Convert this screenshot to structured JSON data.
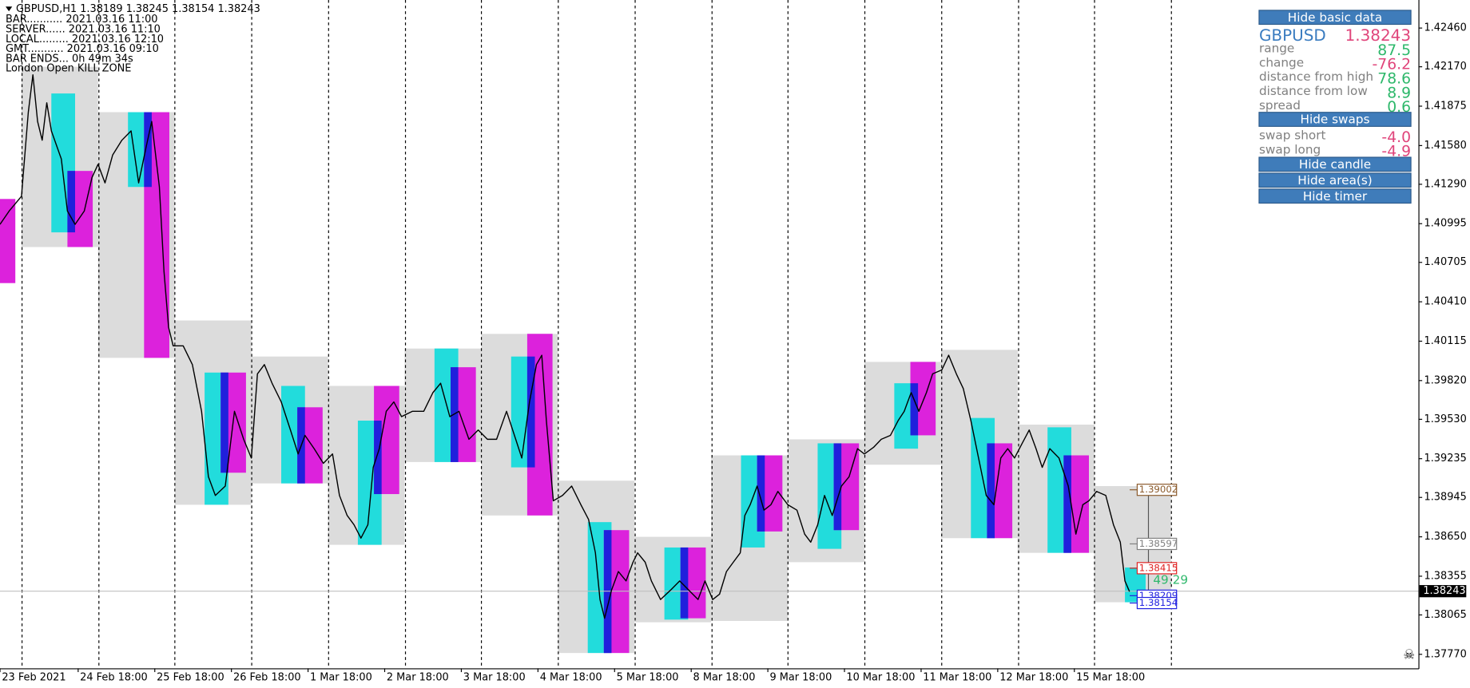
{
  "chart_data": {
    "type": "line",
    "title": "GBPUSD,H1  1.38189 1.38245 1.38154 1.38243",
    "info_lines": [
      "BAR........... 2021.03.16 11:00",
      "SERVER...... 2021.03.16 11:10",
      "LOCAL......... 2021.03.16 12:10",
      "GMT........... 2021.03.16 09:10",
      "BAR ENDS... 0h 49m 34s",
      "London Open KILL ZONE"
    ],
    "xlim": [
      0,
      18.51
    ],
    "ylim": [
      1.37665,
      1.4267
    ],
    "xticks": [
      {
        "value": 0,
        "label": "23 Feb 2021"
      },
      {
        "value": 1.02,
        "label": "24 Feb 18:00"
      },
      {
        "value": 2.02,
        "label": "25 Feb 18:00"
      },
      {
        "value": 3.02,
        "label": "26 Feb 18:00"
      },
      {
        "value": 4.02,
        "label": "1 Mar 18:00"
      },
      {
        "value": 5.02,
        "label": "2 Mar 18:00"
      },
      {
        "value": 6.02,
        "label": "3 Mar 18:00"
      },
      {
        "value": 7.02,
        "label": "4 Mar 18:00"
      },
      {
        "value": 8.02,
        "label": "5 Mar 18:00"
      },
      {
        "value": 9.02,
        "label": "8 Mar 18:00"
      },
      {
        "value": 10.02,
        "label": "9 Mar 18:00"
      },
      {
        "value": 11.02,
        "label": "10 Mar 18:00"
      },
      {
        "value": 12.02,
        "label": "11 Mar 18:00"
      },
      {
        "value": 13.02,
        "label": "12 Mar 18:00"
      },
      {
        "value": 14.02,
        "label": "15 Mar 18:00"
      }
    ],
    "yticks": [
      {
        "value": 1.4246,
        "label": "1.42460"
      },
      {
        "value": 1.4217,
        "label": "1.42170"
      },
      {
        "value": 1.41875,
        "label": "1.41875"
      },
      {
        "value": 1.4158,
        "label": "1.41580"
      },
      {
        "value": 1.4129,
        "label": "1.41290"
      },
      {
        "value": 1.40995,
        "label": "1.40995"
      },
      {
        "value": 1.40705,
        "label": "1.40705"
      },
      {
        "value": 1.4041,
        "label": "1.40410"
      },
      {
        "value": 1.40115,
        "label": "1.40115"
      },
      {
        "value": 1.3982,
        "label": "1.39820"
      },
      {
        "value": 1.3953,
        "label": "1.39530"
      },
      {
        "value": 1.39235,
        "label": "1.39235"
      },
      {
        "value": 1.38945,
        "label": "1.38945"
      },
      {
        "value": 1.3865,
        "label": "1.38650"
      },
      {
        "value": 1.38355,
        "label": "1.38355"
      },
      {
        "value": 1.38065,
        "label": "1.38065"
      },
      {
        "value": 1.3777,
        "label": "1.37770"
      }
    ],
    "separators": [
      0.28,
      1.28,
      2.28,
      3.28,
      4.28,
      5.28,
      6.28,
      7.28,
      8.28,
      9.28,
      10.28,
      11.28,
      12.28,
      13.28,
      14.28,
      15.28
    ],
    "color": "#000000",
    "x": [
      0,
      0.12,
      0.28,
      0.37,
      0.43,
      0.49,
      0.55,
      0.61,
      0.67,
      0.8,
      0.88,
      0.98,
      1.1,
      1.2,
      1.28,
      1.37,
      1.47,
      1.59,
      1.71,
      1.81,
      1.9,
      1.98,
      2.08,
      2.14,
      2.2,
      2.26,
      2.39,
      2.51,
      2.63,
      2.72,
      2.81,
      2.94,
      3.06,
      3.18,
      3.28,
      3.36,
      3.45,
      3.55,
      3.67,
      3.79,
      3.89,
      3.98,
      4.1,
      4.22,
      4.34,
      4.43,
      4.53,
      4.62,
      4.71,
      4.8,
      4.87,
      4.95,
      5.04,
      5.14,
      5.24,
      5.38,
      5.53,
      5.65,
      5.75,
      5.87,
      5.99,
      6.12,
      6.24,
      6.36,
      6.48,
      6.61,
      6.73,
      6.81,
      6.91,
      7,
      7.07,
      7.13,
      7.22,
      7.34,
      7.46,
      7.58,
      7.68,
      7.77,
      7.83,
      7.89,
      7.98,
      8.07,
      8.17,
      8.26,
      8.32,
      8.42,
      8.5,
      8.62,
      8.75,
      8.87,
      8.99,
      9.11,
      9.2,
      9.3,
      9.39,
      9.48,
      9.57,
      9.66,
      9.72,
      9.79,
      9.88,
      9.97,
      10.06,
      10.15,
      10.28,
      10.4,
      10.5,
      10.58,
      10.67,
      10.76,
      10.86,
      10.98,
      11.08,
      11.19,
      11.28,
      11.4,
      11.5,
      11.62,
      11.72,
      11.8,
      11.89,
      11.99,
      12.09,
      12.17,
      12.29,
      12.38,
      12.48,
      12.57,
      12.67,
      12.77,
      12.87,
      12.97,
      13.06,
      13.15,
      13.24,
      13.33,
      13.43,
      13.52,
      13.6,
      13.7,
      13.82,
      13.94,
      14.04,
      14.13,
      14.21,
      14.31,
      14.43,
      14.53,
      14.62,
      14.68,
      14.74
    ],
    "values": [
      1.4099,
      1.4109,
      1.412,
      1.4183,
      1.4211,
      1.4176,
      1.4162,
      1.419,
      1.4169,
      1.4148,
      1.4109,
      1.4099,
      1.4109,
      1.4134,
      1.4144,
      1.413,
      1.4151,
      1.4162,
      1.4169,
      1.413,
      1.4155,
      1.4176,
      1.4127,
      1.4064,
      1.4022,
      1.4008,
      1.4008,
      1.3994,
      1.3959,
      1.391,
      1.3896,
      1.3903,
      1.3959,
      1.3938,
      1.3924,
      1.3987,
      1.3994,
      1.398,
      1.3966,
      1.3945,
      1.3927,
      1.3941,
      1.3931,
      1.392,
      1.3927,
      1.3896,
      1.3881,
      1.3874,
      1.3864,
      1.3874,
      1.3917,
      1.3931,
      1.3959,
      1.3966,
      1.3955,
      1.3959,
      1.3959,
      1.3973,
      1.398,
      1.3955,
      1.3959,
      1.3938,
      1.3945,
      1.3938,
      1.3938,
      1.3959,
      1.3938,
      1.3924,
      1.3966,
      1.3994,
      1.4001,
      1.3952,
      1.3892,
      1.3896,
      1.3903,
      1.3889,
      1.3878,
      1.3853,
      1.3818,
      1.3804,
      1.3825,
      1.3839,
      1.3832,
      1.3846,
      1.3853,
      1.3846,
      1.3832,
      1.3818,
      1.3825,
      1.3832,
      1.3825,
      1.3818,
      1.3832,
      1.3818,
      1.3822,
      1.3839,
      1.3846,
      1.3853,
      1.3881,
      1.3889,
      1.3903,
      1.3885,
      1.3889,
      1.3899,
      1.3889,
      1.3885,
      1.3867,
      1.3861,
      1.3874,
      1.3896,
      1.3881,
      1.3903,
      1.391,
      1.3931,
      1.3927,
      1.3932,
      1.3938,
      1.3941,
      1.3952,
      1.3959,
      1.3973,
      1.3959,
      1.3973,
      1.3987,
      1.399,
      1.4001,
      1.3987,
      1.3976,
      1.3952,
      1.3924,
      1.3896,
      1.3889,
      1.3924,
      1.3931,
      1.3924,
      1.3934,
      1.3945,
      1.3931,
      1.3917,
      1.3931,
      1.3924,
      1.3903,
      1.3867,
      1.3889,
      1.3892,
      1.3899,
      1.3896,
      1.3874,
      1.3861,
      1.3832,
      1.3824
    ],
    "session_boxes": {
      "color": "#dcdcdc",
      "boxes": [
        {
          "x": [
            0.28,
            1.28
          ],
          "y": [
            1.4082,
            1.4217
          ]
        },
        {
          "x": [
            1.28,
            2.28
          ],
          "y": [
            1.3999,
            1.4183
          ]
        },
        {
          "x": [
            2.28,
            3.28
          ],
          "y": [
            1.3889,
            1.4027
          ]
        },
        {
          "x": [
            3.28,
            4.28
          ],
          "y": [
            1.3905,
            1.4
          ]
        },
        {
          "x": [
            4.28,
            5.28
          ],
          "y": [
            1.3859,
            1.3978
          ]
        },
        {
          "x": [
            5.28,
            6.28
          ],
          "y": [
            1.3921,
            1.4006
          ]
        },
        {
          "x": [
            6.28,
            7.28
          ],
          "y": [
            1.3881,
            1.4017
          ]
        },
        {
          "x": [
            7.28,
            8.28
          ],
          "y": [
            1.3778,
            1.3907
          ]
        },
        {
          "x": [
            8.28,
            9.28
          ],
          "y": [
            1.3801,
            1.3865
          ]
        },
        {
          "x": [
            9.28,
            10.28
          ],
          "y": [
            1.3802,
            1.3926
          ]
        },
        {
          "x": [
            10.28,
            11.28
          ],
          "y": [
            1.3846,
            1.3938
          ]
        },
        {
          "x": [
            11.28,
            12.28
          ],
          "y": [
            1.3919,
            1.3996
          ]
        },
        {
          "x": [
            12.28,
            13.28
          ],
          "y": [
            1.3864,
            1.4005
          ]
        },
        {
          "x": [
            13.28,
            14.28
          ],
          "y": [
            1.3853,
            1.3949
          ]
        },
        {
          "x": [
            14.28,
            15.28
          ],
          "y": [
            1.3816,
            1.3903
          ]
        }
      ]
    },
    "cyan_boxes": {
      "color": "#22dcdc",
      "boxes": [
        {
          "x": [
            0.67,
            0.98
          ],
          "y": [
            1.4093,
            1.4197
          ]
        },
        {
          "x": [
            1.67,
            1.98
          ],
          "y": [
            1.4127,
            1.4183
          ]
        },
        {
          "x": [
            2.67,
            2.98
          ],
          "y": [
            1.3889,
            1.3988
          ]
        },
        {
          "x": [
            3.67,
            3.98
          ],
          "y": [
            1.3905,
            1.3978
          ]
        },
        {
          "x": [
            4.67,
            4.98
          ],
          "y": [
            1.3859,
            1.3952
          ]
        },
        {
          "x": [
            5.67,
            5.98
          ],
          "y": [
            1.3921,
            1.4006
          ]
        },
        {
          "x": [
            6.67,
            6.98
          ],
          "y": [
            1.3917,
            1.4
          ]
        },
        {
          "x": [
            7.67,
            7.98
          ],
          "y": [
            1.3778,
            1.3876
          ]
        },
        {
          "x": [
            8.67,
            8.98
          ],
          "y": [
            1.3803,
            1.3857
          ]
        },
        {
          "x": [
            9.67,
            9.98
          ],
          "y": [
            1.3857,
            1.3926
          ]
        },
        {
          "x": [
            10.67,
            10.98
          ],
          "y": [
            1.3856,
            1.3935
          ]
        },
        {
          "x": [
            11.67,
            11.98
          ],
          "y": [
            1.3931,
            1.398
          ]
        },
        {
          "x": [
            12.67,
            12.98
          ],
          "y": [
            1.3864,
            1.3954
          ]
        },
        {
          "x": [
            13.67,
            13.98
          ],
          "y": [
            1.3853,
            1.3947
          ]
        },
        {
          "x": [
            14.68,
            14.95
          ],
          "y": [
            1.3816,
            1.3842
          ]
        }
      ]
    },
    "magenta_boxes": {
      "color": "#dc22dc",
      "boxes": [
        {
          "x": [
            0,
            0.2
          ],
          "y": [
            1.4055,
            1.4118
          ]
        },
        {
          "x": [
            0.88,
            1.21
          ],
          "y": [
            1.4082,
            1.4139
          ]
        },
        {
          "x": [
            1.88,
            2.21
          ],
          "y": [
            1.3999,
            1.4183
          ]
        },
        {
          "x": [
            2.88,
            3.21
          ],
          "y": [
            1.3913,
            1.3988
          ]
        },
        {
          "x": [
            3.88,
            4.21
          ],
          "y": [
            1.3905,
            1.3962
          ]
        },
        {
          "x": [
            4.88,
            5.21
          ],
          "y": [
            1.3897,
            1.3978
          ]
        },
        {
          "x": [
            5.88,
            6.21
          ],
          "y": [
            1.3921,
            1.3992
          ]
        },
        {
          "x": [
            6.88,
            7.21
          ],
          "y": [
            1.3881,
            1.4017
          ]
        },
        {
          "x": [
            7.88,
            8.21
          ],
          "y": [
            1.3778,
            1.387
          ]
        },
        {
          "x": [
            8.88,
            9.21
          ],
          "y": [
            1.3804,
            1.3857
          ]
        },
        {
          "x": [
            9.88,
            10.21
          ],
          "y": [
            1.3869,
            1.3926
          ]
        },
        {
          "x": [
            10.88,
            11.21
          ],
          "y": [
            1.387,
            1.3935
          ]
        },
        {
          "x": [
            11.88,
            12.21
          ],
          "y": [
            1.3941,
            1.3996
          ]
        },
        {
          "x": [
            12.88,
            13.21
          ],
          "y": [
            1.3864,
            1.3935
          ]
        },
        {
          "x": [
            13.88,
            14.21
          ],
          "y": [
            1.3853,
            1.3926
          ]
        }
      ]
    },
    "overlap_color": "#2020dc",
    "levels": [
      1.39002,
      1.38597,
      1.38415,
      1.38209,
      1.38154
    ],
    "level_colors": [
      "#8b5a2b",
      "#808080",
      "#e02020",
      "#2020e0",
      "#2020e0"
    ],
    "countdown": "49.29",
    "countdown_color": "#2eb86b",
    "last_price": 1.38243
  },
  "info_panel": {
    "buttons": [
      "Hide basic data",
      "Hide swaps",
      "Hide candle",
      "Hide area(s)",
      "Hide timer"
    ],
    "symbol": "GBPUSD",
    "price": "1.38243",
    "rows": [
      {
        "label": "range",
        "value": "87.5",
        "color": "#2eb86b"
      },
      {
        "label": "change",
        "value": "-76.2",
        "color": "#e0457b"
      },
      {
        "label": "distance from high",
        "value": "78.6",
        "color": "#2eb86b"
      },
      {
        "label": "distance from low",
        "value": "8.9",
        "color": "#2eb86b"
      },
      {
        "label": "spread",
        "value": "0.6",
        "color": "#2eb86b"
      }
    ],
    "swap_rows": [
      {
        "label": "swap short",
        "value": "-4.0",
        "color": "#e0457b"
      },
      {
        "label": "swap long",
        "value": "-4.9",
        "color": "#e0457b"
      }
    ]
  }
}
